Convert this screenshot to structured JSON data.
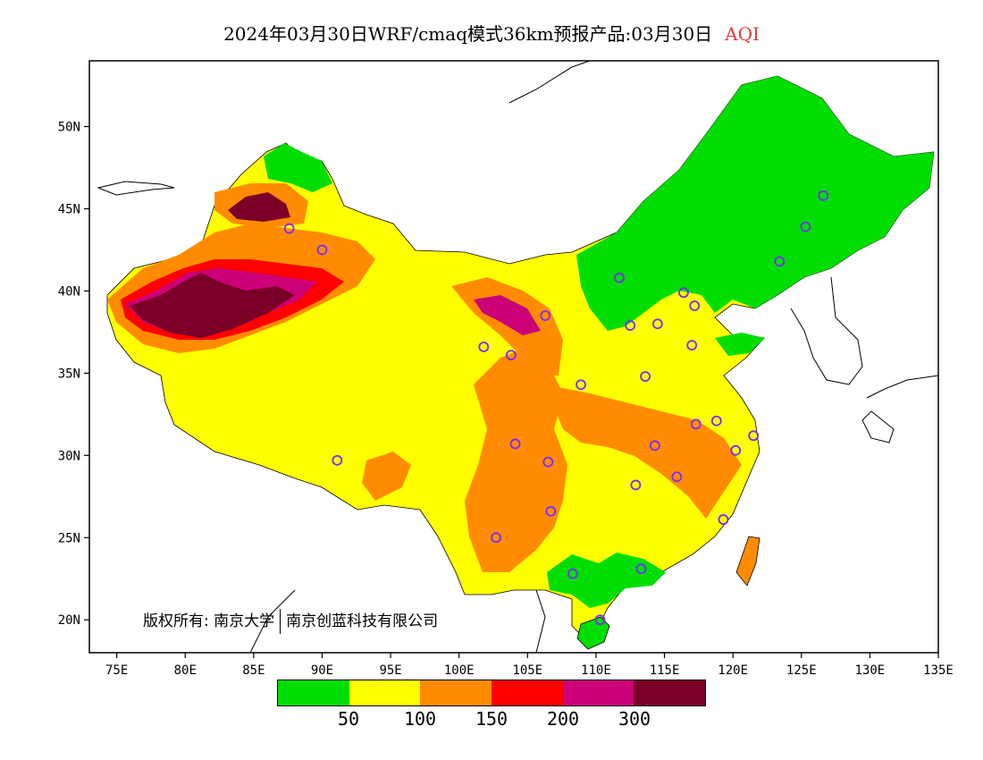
{
  "title": {
    "main": "2024年03月30日WRF/cmaq模式36km预报产品:03月30日",
    "variable": "AQI"
  },
  "axes": {
    "x_ticks": [
      "75E",
      "80E",
      "85E",
      "90E",
      "95E",
      "100E",
      "105E",
      "110E",
      "115E",
      "120E",
      "125E",
      "130E",
      "135E"
    ],
    "y_ticks": [
      "50N",
      "45N",
      "40N",
      "35N",
      "30N",
      "25N",
      "20N"
    ]
  },
  "legend": {
    "colors": [
      "#00dd00",
      "#ffff00",
      "#ff8c00",
      "#ff0000",
      "#cc0077",
      "#7a0028"
    ],
    "labels": [
      "50",
      "100",
      "150",
      "200",
      "300"
    ]
  },
  "copyright": {
    "left": "版权所有: 南京大学",
    "right": "南京创蓝科技有限公司"
  },
  "chart_data": {
    "type": "heatmap",
    "title": "2024年03月30日WRF/cmaq模式36km预报产品:03月30日 AQI",
    "xlim": [
      73,
      135
    ],
    "ylim": [
      18,
      54
    ],
    "levels": [
      50,
      100,
      150,
      200,
      300
    ],
    "station_markers": [
      [
        87.6,
        43.8
      ],
      [
        90.0,
        42.5
      ],
      [
        91.1,
        29.7
      ],
      [
        101.8,
        36.6
      ],
      [
        103.8,
        36.1
      ],
      [
        106.3,
        38.5
      ],
      [
        108.9,
        34.3
      ],
      [
        104.1,
        30.7
      ],
      [
        106.5,
        29.6
      ],
      [
        106.7,
        26.6
      ],
      [
        102.7,
        25.0
      ],
      [
        108.3,
        22.8
      ],
      [
        113.3,
        23.1
      ],
      [
        110.3,
        20.0
      ],
      [
        111.7,
        40.8
      ],
      [
        116.4,
        39.9
      ],
      [
        117.2,
        39.1
      ],
      [
        114.5,
        38.0
      ],
      [
        112.5,
        37.9
      ],
      [
        117.0,
        36.7
      ],
      [
        113.6,
        34.8
      ],
      [
        114.3,
        30.6
      ],
      [
        112.9,
        28.2
      ],
      [
        115.9,
        28.7
      ],
      [
        117.3,
        31.9
      ],
      [
        118.8,
        32.1
      ],
      [
        120.2,
        30.3
      ],
      [
        121.5,
        31.2
      ],
      [
        119.3,
        26.1
      ],
      [
        123.4,
        41.8
      ],
      [
        125.3,
        43.9
      ],
      [
        126.6,
        45.8
      ]
    ]
  }
}
